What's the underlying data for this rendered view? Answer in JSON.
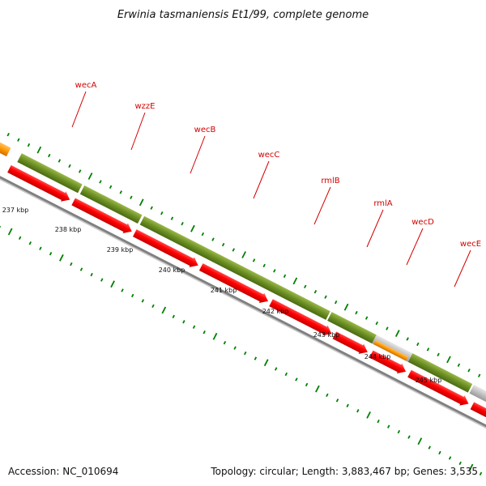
{
  "header": {
    "title": "Erwinia tasmaniensis Et1/99, complete genome"
  },
  "footer": {
    "accession": "Accession: NC_010694",
    "summary": "Topology: circular; Length: 3,883,467 bp; Genes: 3,535"
  },
  "colors": {
    "cds_forward": "#ff0000",
    "gene_green": "#6b8e23",
    "orange": "#ff9900",
    "gray_feature": "#c0c0c0",
    "backbone": "#808080",
    "tick": "#008000",
    "label": "#d40000"
  },
  "genes": [
    {
      "name": "wecA"
    },
    {
      "name": "wzzE"
    },
    {
      "name": "wecB"
    },
    {
      "name": "wecC"
    },
    {
      "name": "rmlB"
    },
    {
      "name": "rmlA"
    },
    {
      "name": "wecD"
    },
    {
      "name": "wecE"
    }
  ],
  "kbp_ticks": [
    "237 kbp",
    "238 kbp",
    "239 kbp",
    "240 kbp",
    "241 kbp",
    "242 kbp",
    "243 kbp",
    "244 kbp",
    "245 kbp"
  ]
}
